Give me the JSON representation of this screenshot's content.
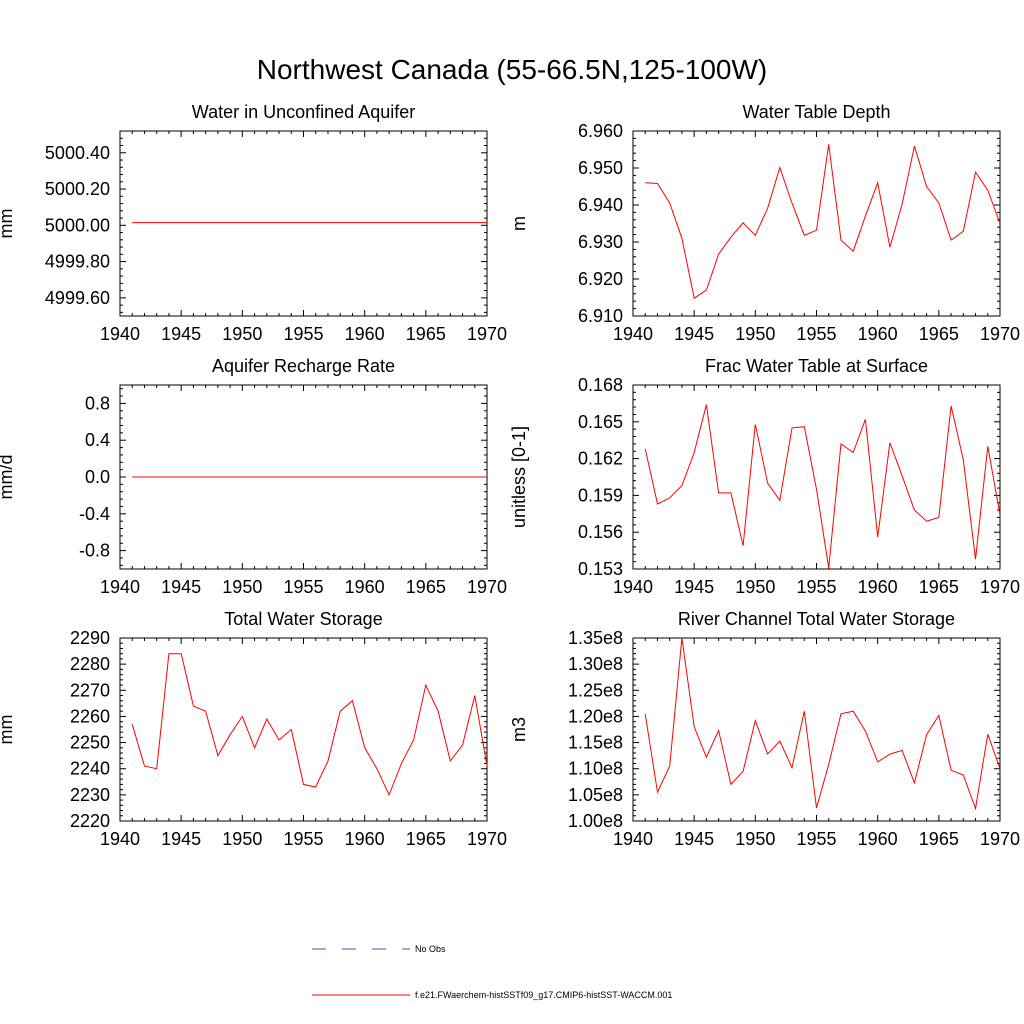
{
  "title": "Northwest Canada (55-66.5N,125-100W)",
  "colors": {
    "series": "#ff0000",
    "obs": "#4b4bd2",
    "axis": "#000000"
  },
  "legend": {
    "obs_label": "No Obs",
    "model_label": "f.e21.FWaerchem-histSSTf09_g17.CMIP6-histSST-WACCM.001"
  },
  "chart_data": [
    {
      "type": "line",
      "title": "Water in Unconfined Aquifer",
      "ylabel": "mm",
      "xlim": [
        1940,
        1970
      ],
      "ylim": [
        4999.5,
        5000.52
      ],
      "xticks": [
        1940,
        1945,
        1950,
        1955,
        1960,
        1965,
        1970
      ],
      "yticks": [
        4999.6,
        4999.8,
        5000.0,
        5000.2,
        5000.4
      ],
      "ytick_labels": [
        "4999.60",
        "4999.80",
        "5000.00",
        "5000.20",
        "5000.40"
      ],
      "x": [
        1941,
        1970
      ],
      "values": [
        5000.015,
        5000.015
      ]
    },
    {
      "type": "line",
      "title": "Water Table Depth",
      "ylabel": "m",
      "xlim": [
        1940,
        1970
      ],
      "ylim": [
        6.91,
        6.96
      ],
      "xticks": [
        1940,
        1945,
        1950,
        1955,
        1960,
        1965,
        1970
      ],
      "yticks": [
        6.91,
        6.92,
        6.93,
        6.94,
        6.95,
        6.96
      ],
      "ytick_labels": [
        "6.910",
        "6.920",
        "6.930",
        "6.940",
        "6.950",
        "6.960"
      ],
      "x": [
        1941,
        1942,
        1943,
        1944,
        1945,
        1946,
        1947,
        1948,
        1949,
        1950,
        1951,
        1952,
        1953,
        1954,
        1955,
        1956,
        1957,
        1958,
        1959,
        1960,
        1961,
        1962,
        1963,
        1964,
        1965,
        1966,
        1967,
        1968,
        1969,
        1970
      ],
      "values": [
        6.946,
        6.9458,
        6.9405,
        6.931,
        6.9148,
        6.917,
        6.9267,
        6.9313,
        6.9352,
        6.9318,
        6.9391,
        6.9501,
        6.9405,
        6.9318,
        6.9332,
        6.9564,
        6.9305,
        6.9275,
        6.937,
        6.946,
        6.9286,
        6.9402,
        6.9559,
        6.945,
        6.9406,
        6.9305,
        6.9329,
        6.9489,
        6.944,
        6.935
      ]
    },
    {
      "type": "line",
      "title": "Aquifer Recharge Rate",
      "ylabel": "mm/d",
      "xlim": [
        1940,
        1970
      ],
      "ylim": [
        -1.0,
        1.0
      ],
      "xticks": [
        1940,
        1945,
        1950,
        1955,
        1960,
        1965,
        1970
      ],
      "yticks": [
        -0.8,
        -0.4,
        0.0,
        0.4,
        0.8
      ],
      "ytick_labels": [
        "-0.8",
        "-0.4",
        "0.0",
        "0.4",
        "0.8"
      ],
      "x": [
        1941,
        1970
      ],
      "values": [
        0.0,
        0.0
      ]
    },
    {
      "type": "line",
      "title": "Frac Water Table at Surface",
      "ylabel": "unitless [0-1]",
      "xlim": [
        1940,
        1970
      ],
      "ylim": [
        0.153,
        0.168
      ],
      "xticks": [
        1940,
        1945,
        1950,
        1955,
        1960,
        1965,
        1970
      ],
      "yticks": [
        0.153,
        0.156,
        0.159,
        0.162,
        0.165,
        0.168
      ],
      "ytick_labels": [
        "0.153",
        "0.156",
        "0.159",
        "0.162",
        "0.165",
        "0.168"
      ],
      "x": [
        1941,
        1942,
        1943,
        1944,
        1945,
        1946,
        1947,
        1948,
        1949,
        1950,
        1951,
        1952,
        1953,
        1954,
        1955,
        1956,
        1957,
        1958,
        1959,
        1960,
        1961,
        1962,
        1963,
        1964,
        1965,
        1966,
        1967,
        1968,
        1969,
        1970
      ],
      "values": [
        0.1628,
        0.1583,
        0.1588,
        0.1598,
        0.1625,
        0.1664,
        0.1592,
        0.1592,
        0.1549,
        0.1648,
        0.16,
        0.1586,
        0.1645,
        0.1646,
        0.1595,
        0.1531,
        0.1632,
        0.1625,
        0.1652,
        0.1556,
        0.1633,
        0.1606,
        0.1578,
        0.1569,
        0.1572,
        0.1663,
        0.1619,
        0.1538,
        0.163,
        0.1574
      ]
    },
    {
      "type": "line",
      "title": "Total Water Storage",
      "ylabel": "mm",
      "xlim": [
        1940,
        1970
      ],
      "ylim": [
        2220,
        2290
      ],
      "xticks": [
        1940,
        1945,
        1950,
        1955,
        1960,
        1965,
        1970
      ],
      "yticks": [
        2220,
        2230,
        2240,
        2250,
        2260,
        2270,
        2280,
        2290
      ],
      "ytick_labels": [
        "2220",
        "2230",
        "2240",
        "2250",
        "2260",
        "2270",
        "2280",
        "2290"
      ],
      "x": [
        1941,
        1942,
        1943,
        1944,
        1945,
        1946,
        1947,
        1948,
        1949,
        1950,
        1951,
        1952,
        1953,
        1954,
        1955,
        1956,
        1957,
        1958,
        1959,
        1960,
        1961,
        1962,
        1963,
        1964,
        1965,
        1966,
        1967,
        1968,
        1969,
        1970
      ],
      "values": [
        2257,
        2241,
        2240,
        2284,
        2284,
        2264,
        2262,
        2245,
        2253,
        2260,
        2248,
        2259,
        2251,
        2255,
        2234,
        2233,
        2243,
        2262,
        2266,
        2248,
        2240,
        2230,
        2242,
        2251,
        2272,
        2262,
        2243,
        2249,
        2268,
        2241
      ]
    },
    {
      "type": "line",
      "title": "River Channel Total Water Storage",
      "ylabel": "m3",
      "xlim": [
        1940,
        1970
      ],
      "ylim": [
        100000000,
        135000000
      ],
      "xticks": [
        1940,
        1945,
        1950,
        1955,
        1960,
        1965,
        1970
      ],
      "yticks": [
        100000000,
        105000000,
        110000000,
        115000000,
        120000000,
        125000000,
        130000000,
        135000000
      ],
      "ytick_labels": [
        "1.00e8",
        "1.05e8",
        "1.10e8",
        "1.15e8",
        "1.20e8",
        "1.25e8",
        "1.30e8",
        "1.35e8"
      ],
      "x": [
        1941,
        1942,
        1943,
        1944,
        1945,
        1946,
        1947,
        1948,
        1949,
        1950,
        1951,
        1952,
        1953,
        1954,
        1955,
        1956,
        1957,
        1958,
        1959,
        1960,
        1961,
        1962,
        1963,
        1964,
        1965,
        1966,
        1967,
        1968,
        1969,
        1970
      ],
      "values": [
        120500000,
        105500000,
        110500000,
        135000000,
        118000000,
        112200000,
        117300000,
        107000000,
        109500000,
        119200000,
        112800000,
        115300000,
        110200000,
        121000000,
        102500000,
        110800000,
        120500000,
        121000000,
        117200000,
        111300000,
        112800000,
        113500000,
        107300000,
        116500000,
        120200000,
        109700000,
        108800000,
        102400000,
        116600000,
        110000000
      ]
    }
  ]
}
